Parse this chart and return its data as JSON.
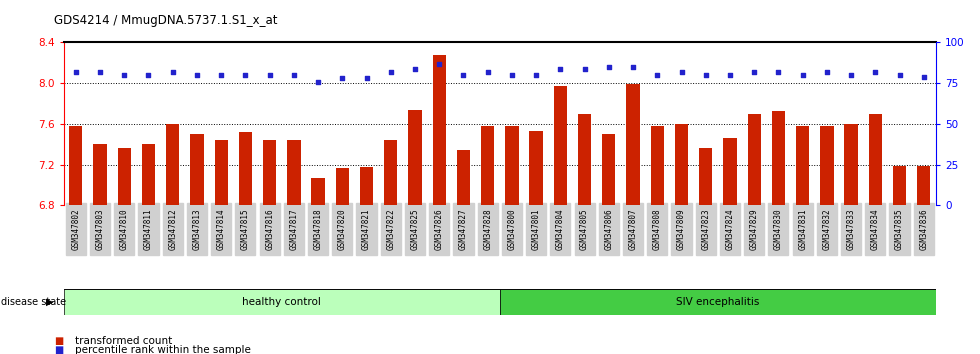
{
  "title": "GDS4214 / MmugDNA.5737.1.S1_x_at",
  "samples": [
    "GSM347802",
    "GSM347803",
    "GSM347810",
    "GSM347811",
    "GSM347812",
    "GSM347813",
    "GSM347814",
    "GSM347815",
    "GSM347816",
    "GSM347817",
    "GSM347818",
    "GSM347820",
    "GSM347821",
    "GSM347822",
    "GSM347825",
    "GSM347826",
    "GSM347827",
    "GSM347828",
    "GSM347800",
    "GSM347801",
    "GSM347804",
    "GSM347805",
    "GSM347806",
    "GSM347807",
    "GSM347808",
    "GSM347809",
    "GSM347823",
    "GSM347824",
    "GSM347829",
    "GSM347830",
    "GSM347831",
    "GSM347832",
    "GSM347833",
    "GSM347834",
    "GSM347835",
    "GSM347836"
  ],
  "bar_values": [
    7.58,
    7.4,
    7.36,
    7.4,
    7.6,
    7.5,
    7.44,
    7.52,
    7.44,
    7.44,
    7.07,
    7.17,
    7.18,
    7.44,
    7.74,
    8.28,
    7.34,
    7.58,
    7.58,
    7.53,
    7.97,
    7.7,
    7.5,
    7.99,
    7.58,
    7.6,
    7.36,
    7.46,
    7.7,
    7.73,
    7.58,
    7.58,
    7.6,
    7.7,
    7.19,
    7.19
  ],
  "percentile_values": [
    82,
    82,
    80,
    80,
    82,
    80,
    80,
    80,
    80,
    80,
    76,
    78,
    78,
    82,
    84,
    87,
    80,
    82,
    80,
    80,
    84,
    84,
    85,
    85,
    80,
    82,
    80,
    80,
    82,
    82,
    80,
    82,
    80,
    82,
    80,
    79
  ],
  "healthy_count": 18,
  "ylim_left": [
    6.8,
    8.4
  ],
  "ylim_right": [
    0,
    100
  ],
  "yticks_left": [
    6.8,
    7.2,
    7.6,
    8.0,
    8.4
  ],
  "yticks_right": [
    0,
    25,
    50,
    75,
    100
  ],
  "bar_color": "#cc2200",
  "dot_color": "#2222cc",
  "healthy_color": "#bbffbb",
  "siv_color": "#44cc44",
  "healthy_label": "healthy control",
  "siv_label": "SIV encephalitis",
  "disease_state_label": "disease state",
  "legend1": "transformed count",
  "legend2": "percentile rank within the sample",
  "bg_color": "#ffffff",
  "xticklabel_bg": "#d0d0d0"
}
